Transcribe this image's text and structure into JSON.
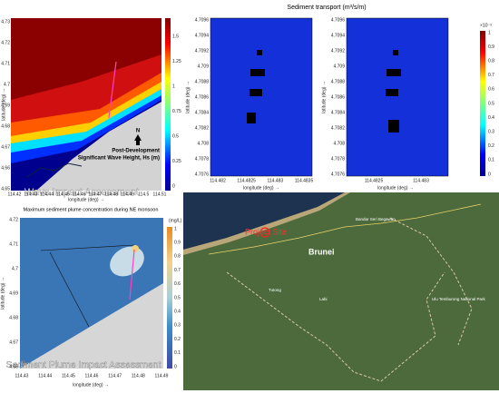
{
  "wave_panel": {
    "y_ticks": [
      "4.73",
      "4.72",
      "4.71",
      "4.7",
      "4.69",
      "4.68",
      "4.67",
      "4.66",
      "4.65"
    ],
    "x_ticks": [
      "114.42",
      "114.43",
      "114.44",
      "114.45",
      "114.46",
      "114.47",
      "114.48",
      "114.49",
      "114.5",
      "114.51"
    ],
    "y_label": "latitude (deg) →",
    "x_label": "longitude (deg) →",
    "colorbar_ticks": [
      "1.5",
      "1.25",
      "1",
      "0.75",
      "0.5",
      "0.25",
      "0"
    ],
    "north": "N",
    "caption_lines": [
      "Post-Development",
      "Significant Wave Height, Hs (m)"
    ],
    "overlay": "Wave Impact Assessment"
  },
  "sediment_panel": {
    "title": "Sediment transport (m³/s/m)",
    "y_ticks": [
      "4.7096",
      "4.7094",
      "4.7092",
      "4.709",
      "4.7088",
      "4.7086",
      "4.7084",
      "4.7082",
      "4.708",
      "4.7078",
      "4.7076"
    ],
    "left_x_ticks": [
      "114.482",
      "114.4825",
      "114.483",
      "114.4835"
    ],
    "right_x_ticks": [
      "114.4825",
      "114.483"
    ],
    "x_label": "longitude (deg) →",
    "y_label": "latitude (deg) →",
    "colorbar_ticks": [
      "1",
      "0.9",
      "0.8",
      "0.7",
      "0.6",
      "0.5",
      "0.4",
      "0.3",
      "0.2",
      "0.1",
      "0"
    ],
    "colorbar_exponent": "×10⁻³"
  },
  "plume_panel": {
    "title": "Maximum sediment plume concentration during NE monsoon",
    "y_ticks": [
      "4.72",
      "4.71",
      "4.7",
      "4.69",
      "4.68",
      "4.67",
      "4.66"
    ],
    "x_ticks": [
      "114.43",
      "114.44",
      "114.45",
      "114.46",
      "114.47",
      "114.48",
      "114.49"
    ],
    "x_label": "longitude (deg) →",
    "y_label": "latitude (deg) →",
    "colorbar_unit": "(mg/L)",
    "colorbar_ticks": [
      "1",
      "0.9",
      "0.8",
      "0.7",
      "0.6",
      "0.5",
      "0.4",
      "0.3",
      "0.2",
      "0.1",
      "0"
    ],
    "overlay": "Sediment Plume Impact Assessment"
  },
  "map_panel": {
    "project_label": "Project Site",
    "country_label": "Brunei",
    "place_labels": [
      "Tutong",
      "Labi",
      "Bandar Seri Begawan",
      "Ulu Temburong National Park"
    ]
  }
}
